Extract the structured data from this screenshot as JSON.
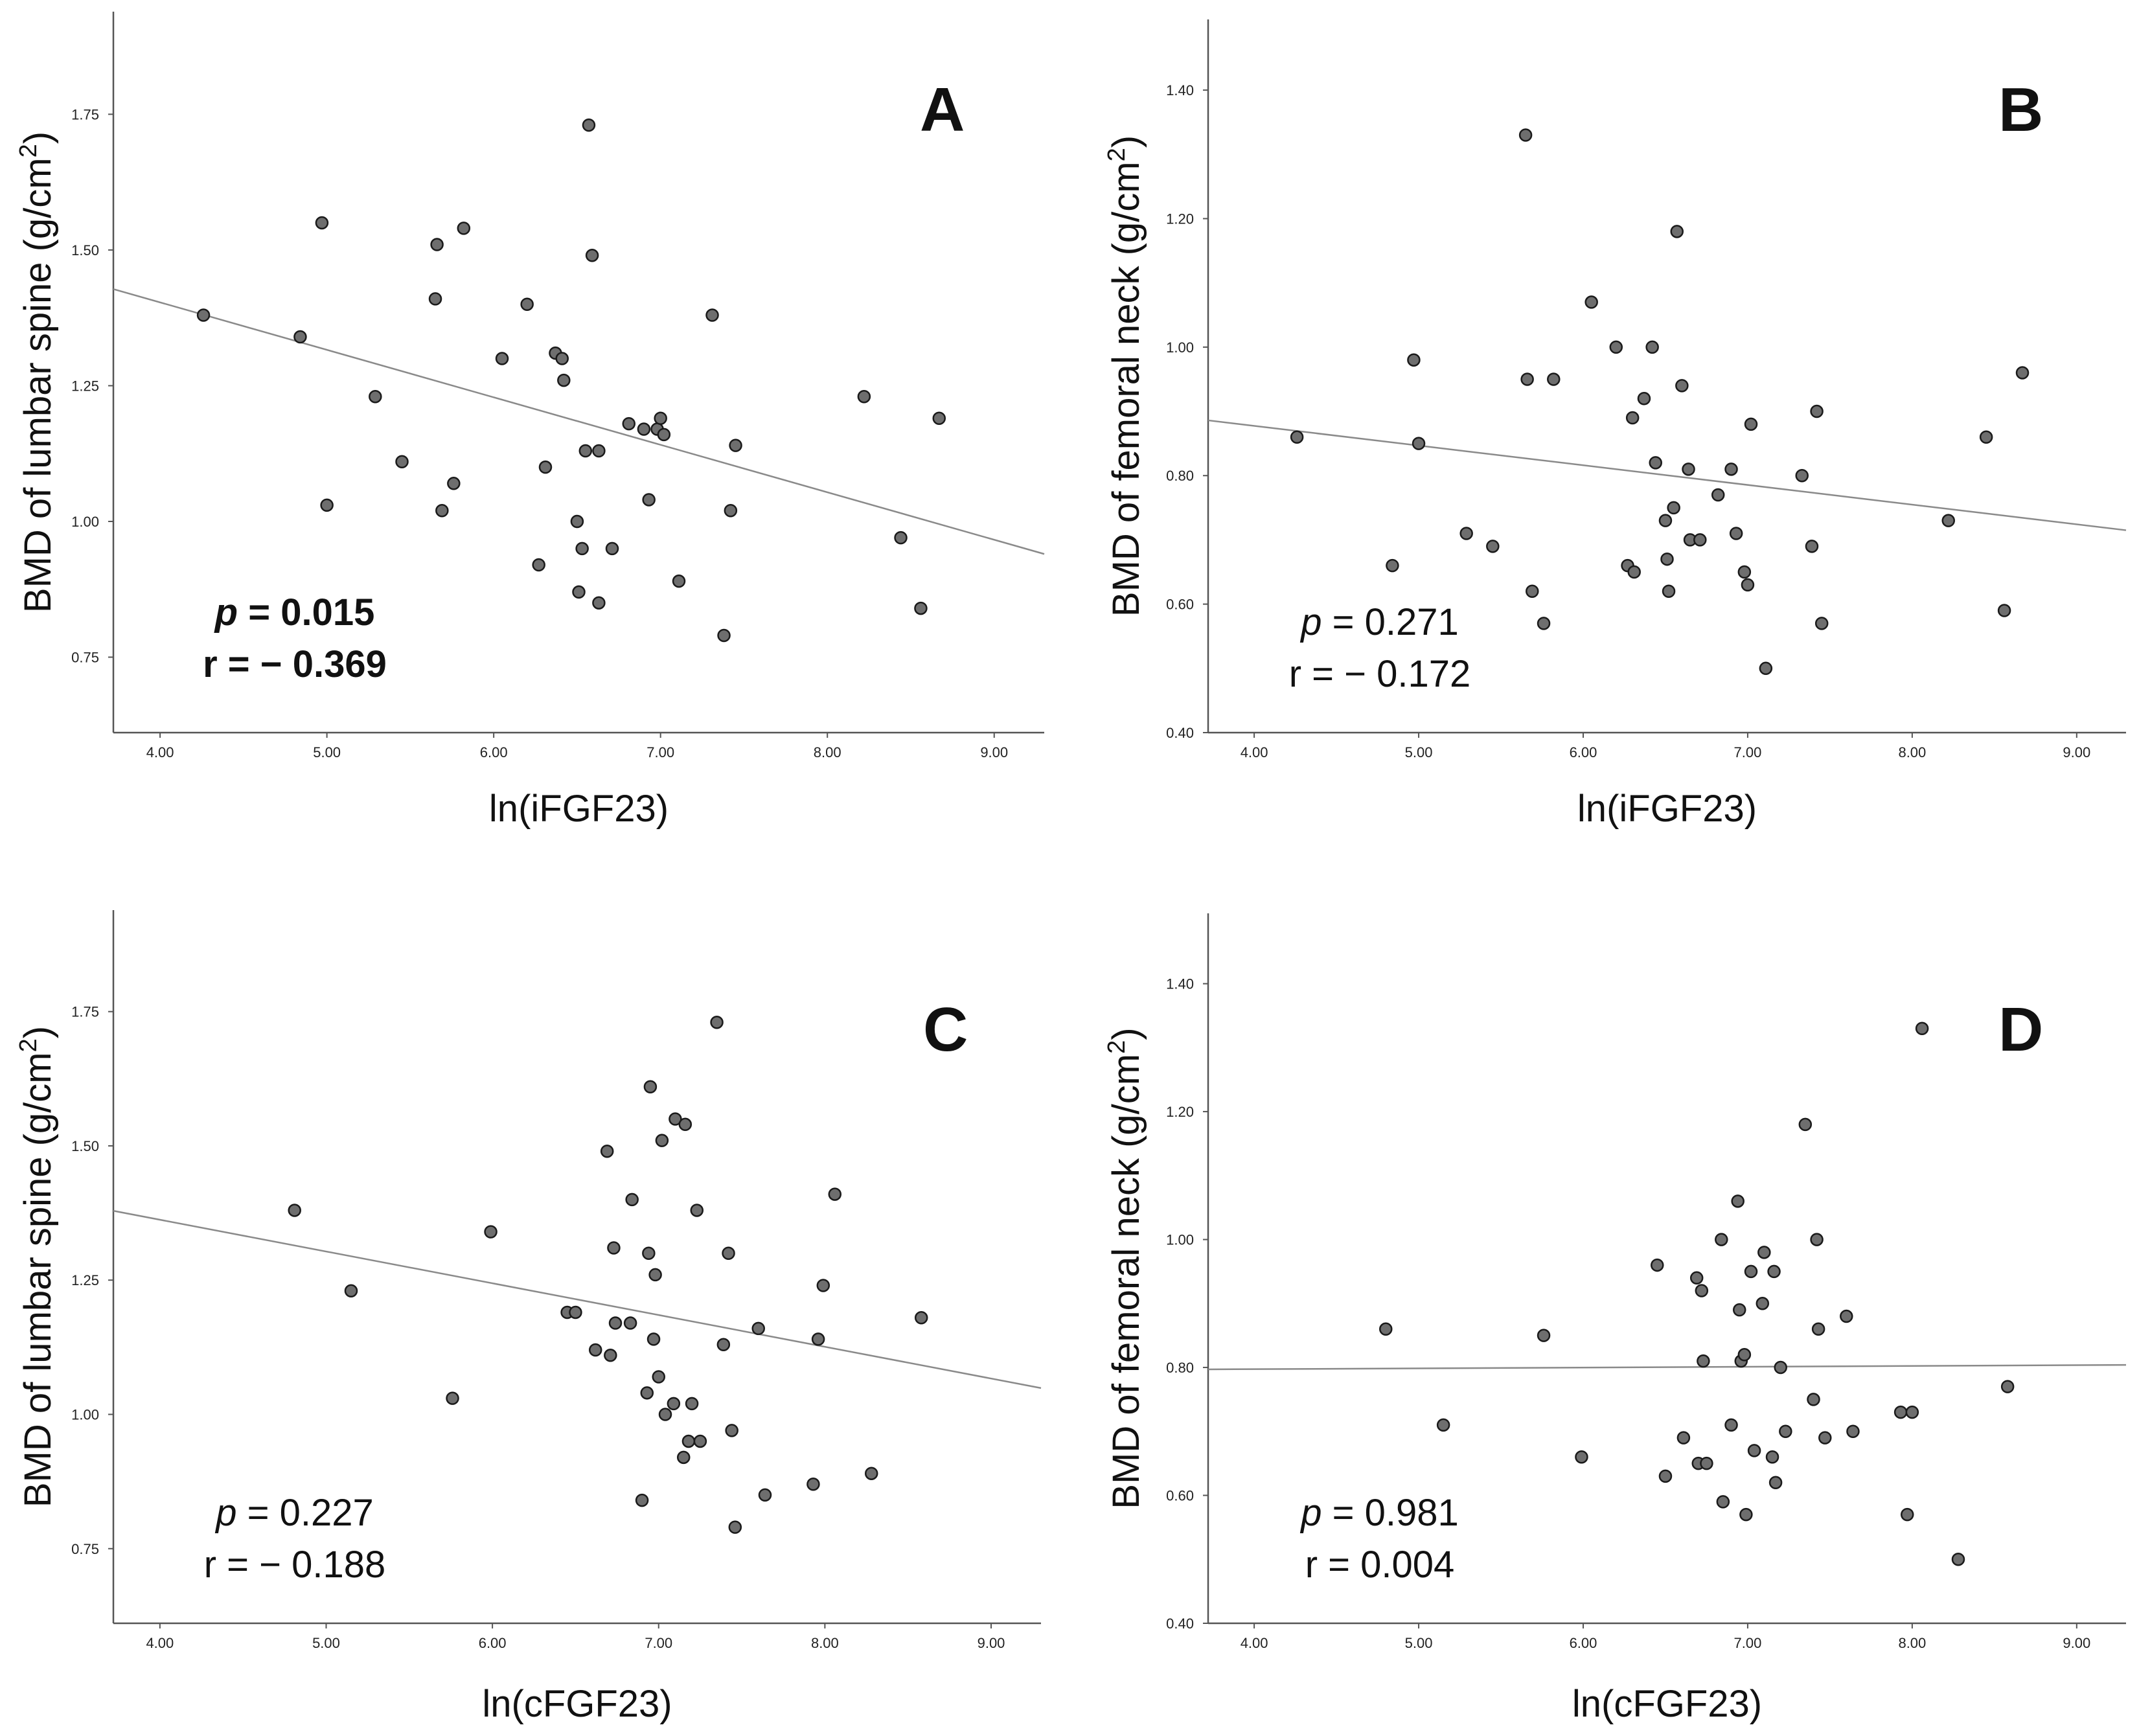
{
  "chart_data": [
    {
      "panel": "A",
      "type": "scatter",
      "xlabel": "ln(iFGF23)",
      "ylabel": "BMD of lumbar spine (g/cm",
      "ylabel_sup": "2",
      "ylabel_close": ")",
      "xlim": [
        3.72,
        9.3
      ],
      "ylim": [
        0.611,
        1.939
      ],
      "xticks": [
        4,
        5,
        6,
        7,
        8,
        9
      ],
      "xtick_labels": [
        "4.00",
        "5.00",
        "6.00",
        "7.00",
        "8.00",
        "9.00"
      ],
      "yticks": [
        0.75,
        1.0,
        1.25,
        1.5,
        1.75
      ],
      "ytick_labels": [
        "0.75",
        "1.00",
        "1.25",
        "1.50",
        "1.75"
      ],
      "p_prefix": "p",
      "p_value": "= 0.015",
      "r_value": "r = − 0.369",
      "stats_bold": true,
      "fit_line": {
        "x": [
          3.72,
          9.3
        ],
        "y": [
          1.428,
          0.94
        ]
      },
      "x": [
        4.26,
        4.84,
        4.97,
        5.0,
        5.29,
        5.45,
        5.65,
        5.66,
        5.69,
        5.76,
        5.82,
        6.05,
        6.2,
        6.27,
        6.31,
        6.37,
        6.41,
        6.42,
        6.5,
        6.51,
        6.53,
        6.55,
        6.57,
        6.59,
        6.63,
        6.63,
        6.71,
        6.81,
        6.9,
        6.93,
        6.98,
        7.0,
        7.02,
        7.11,
        7.31,
        7.38,
        7.42,
        7.45,
        8.22,
        8.44,
        8.56,
        8.67
      ],
      "y": [
        1.38,
        1.34,
        1.55,
        1.03,
        1.23,
        1.11,
        1.41,
        1.51,
        1.02,
        1.07,
        1.54,
        1.3,
        1.4,
        0.92,
        1.1,
        1.31,
        1.3,
        1.26,
        1.0,
        0.87,
        0.95,
        1.13,
        1.73,
        1.49,
        1.13,
        0.85,
        0.95,
        1.18,
        1.17,
        1.04,
        1.17,
        1.19,
        1.16,
        0.89,
        1.38,
        0.79,
        1.02,
        1.14,
        1.23,
        0.97,
        0.84,
        1.19
      ]
    },
    {
      "panel": "B",
      "type": "scatter",
      "xlabel": "ln(iFGF23)",
      "ylabel": "BMD of femoral neck (g/cm",
      "ylabel_sup": "2",
      "ylabel_close": ")",
      "xlim": [
        3.72,
        9.3
      ],
      "ylim": [
        0.4,
        1.51
      ],
      "xticks": [
        4,
        5,
        6,
        7,
        8,
        9
      ],
      "xtick_labels": [
        "4.00",
        "5.00",
        "6.00",
        "7.00",
        "8.00",
        "9.00"
      ],
      "yticks": [
        0.4,
        0.6,
        0.8,
        1.0,
        1.2,
        1.4
      ],
      "ytick_labels": [
        "0.40",
        "0.60",
        "0.80",
        "1.00",
        "1.20",
        "1.40"
      ],
      "p_prefix": "p",
      "p_value": "= 0.271",
      "r_value": "r = − 0.172",
      "stats_bold": false,
      "fit_line": {
        "x": [
          3.72,
          9.3
        ],
        "y": [
          0.886,
          0.715
        ]
      },
      "x": [
        4.26,
        4.84,
        4.97,
        5.0,
        5.29,
        5.45,
        5.65,
        5.66,
        5.69,
        5.76,
        5.82,
        6.05,
        6.2,
        6.27,
        6.3,
        6.31,
        6.37,
        6.42,
        6.44,
        6.5,
        6.51,
        6.52,
        6.55,
        6.57,
        6.6,
        6.64,
        6.65,
        6.71,
        6.82,
        6.9,
        6.93,
        6.98,
        7.0,
        7.02,
        7.11,
        7.33,
        7.39,
        7.42,
        7.45,
        8.22,
        8.45,
        8.56,
        8.67
      ],
      "y": [
        0.86,
        0.66,
        0.98,
        0.85,
        0.71,
        0.69,
        1.33,
        0.95,
        0.62,
        0.57,
        0.95,
        1.07,
        1.0,
        0.66,
        0.89,
        0.65,
        0.92,
        1.0,
        0.82,
        0.73,
        0.67,
        0.62,
        0.75,
        1.18,
        0.94,
        0.81,
        0.7,
        0.7,
        0.77,
        0.81,
        0.71,
        0.65,
        0.63,
        0.88,
        0.5,
        0.8,
        0.69,
        0.9,
        0.57,
        0.73,
        0.86,
        0.59,
        0.96
      ]
    },
    {
      "panel": "C",
      "type": "scatter",
      "xlabel": "ln(cFGF23)",
      "ylabel": "BMD of lumbar spine (g/cm",
      "ylabel_sup": "2",
      "ylabel_close": ")",
      "xlim": [
        3.72,
        9.3
      ],
      "ylim": [
        0.611,
        1.939
      ],
      "xticks": [
        4,
        5,
        6,
        7,
        8,
        9
      ],
      "xtick_labels": [
        "4.00",
        "5.00",
        "6.00",
        "7.00",
        "8.00",
        "9.00"
      ],
      "yticks": [
        0.75,
        1.0,
        1.25,
        1.5,
        1.75
      ],
      "ytick_labels": [
        "0.75",
        "1.00",
        "1.25",
        "1.50",
        "1.75"
      ],
      "p_prefix": "p",
      "p_value": "= 0.227",
      "r_value": "r = − 0.188",
      "stats_bold": false,
      "fit_line": {
        "x": [
          3.72,
          9.3
        ],
        "y": [
          1.379,
          1.049
        ]
      },
      "x": [
        4.81,
        5.15,
        5.76,
        5.99,
        6.45,
        6.5,
        6.62,
        6.69,
        6.71,
        6.73,
        6.74,
        6.83,
        6.84,
        6.9,
        6.93,
        6.94,
        6.95,
        6.97,
        6.98,
        7.0,
        7.02,
        7.04,
        7.09,
        7.1,
        7.15,
        7.16,
        7.18,
        7.2,
        7.23,
        7.25,
        7.35,
        7.39,
        7.42,
        7.44,
        7.46,
        7.6,
        7.64,
        7.93,
        7.96,
        7.99,
        8.06,
        8.28,
        8.58
      ],
      "y": [
        1.38,
        1.23,
        1.03,
        1.34,
        1.19,
        1.19,
        1.12,
        1.49,
        1.11,
        1.31,
        1.17,
        1.17,
        1.4,
        0.84,
        1.04,
        1.3,
        1.61,
        1.14,
        1.26,
        1.07,
        1.51,
        1.0,
        1.02,
        1.55,
        0.92,
        1.54,
        0.95,
        1.02,
        1.38,
        0.95,
        1.73,
        1.13,
        1.3,
        0.97,
        0.79,
        1.16,
        0.85,
        0.87,
        1.14,
        1.24,
        1.41,
        0.89,
        1.18
      ]
    },
    {
      "panel": "D",
      "type": "scatter",
      "xlabel": "ln(cFGF23)",
      "ylabel": "BMD of femoral neck (g/cm",
      "ylabel_sup": "2",
      "ylabel_close": ")",
      "xlim": [
        3.72,
        9.3
      ],
      "ylim": [
        0.4,
        1.51
      ],
      "xticks": [
        4,
        5,
        6,
        7,
        8,
        9
      ],
      "xtick_labels": [
        "4.00",
        "5.00",
        "6.00",
        "7.00",
        "8.00",
        "9.00"
      ],
      "yticks": [
        0.4,
        0.6,
        0.8,
        1.0,
        1.2,
        1.4
      ],
      "ytick_labels": [
        "0.40",
        "0.60",
        "0.80",
        "1.00",
        "1.20",
        "1.40"
      ],
      "p_prefix": "p",
      "p_value": "= 0.981",
      "r_value": "r = 0.004",
      "stats_bold": false,
      "fit_line": {
        "x": [
          3.72,
          9.3
        ],
        "y": [
          0.797,
          0.804
        ]
      },
      "x": [
        4.8,
        5.15,
        5.76,
        5.99,
        6.45,
        6.5,
        6.61,
        6.69,
        6.7,
        6.72,
        6.73,
        6.75,
        6.84,
        6.85,
        6.9,
        6.94,
        6.95,
        6.96,
        6.98,
        6.99,
        7.02,
        7.04,
        7.09,
        7.1,
        7.15,
        7.16,
        7.17,
        7.2,
        7.23,
        7.35,
        7.4,
        7.42,
        7.43,
        7.47,
        7.6,
        7.64,
        7.93,
        7.97,
        8.0,
        8.06,
        8.28,
        8.58
      ],
      "y": [
        0.86,
        0.71,
        0.85,
        0.66,
        0.96,
        0.63,
        0.69,
        0.94,
        0.65,
        0.92,
        0.81,
        0.65,
        1.0,
        0.59,
        0.71,
        1.06,
        0.89,
        0.81,
        0.82,
        0.57,
        0.95,
        0.67,
        0.9,
        0.98,
        0.66,
        0.95,
        0.62,
        0.8,
        0.7,
        1.18,
        0.75,
        1.0,
        0.86,
        0.69,
        0.88,
        0.7,
        0.73,
        0.57,
        0.73,
        1.33,
        0.5,
        0.77
      ]
    }
  ]
}
